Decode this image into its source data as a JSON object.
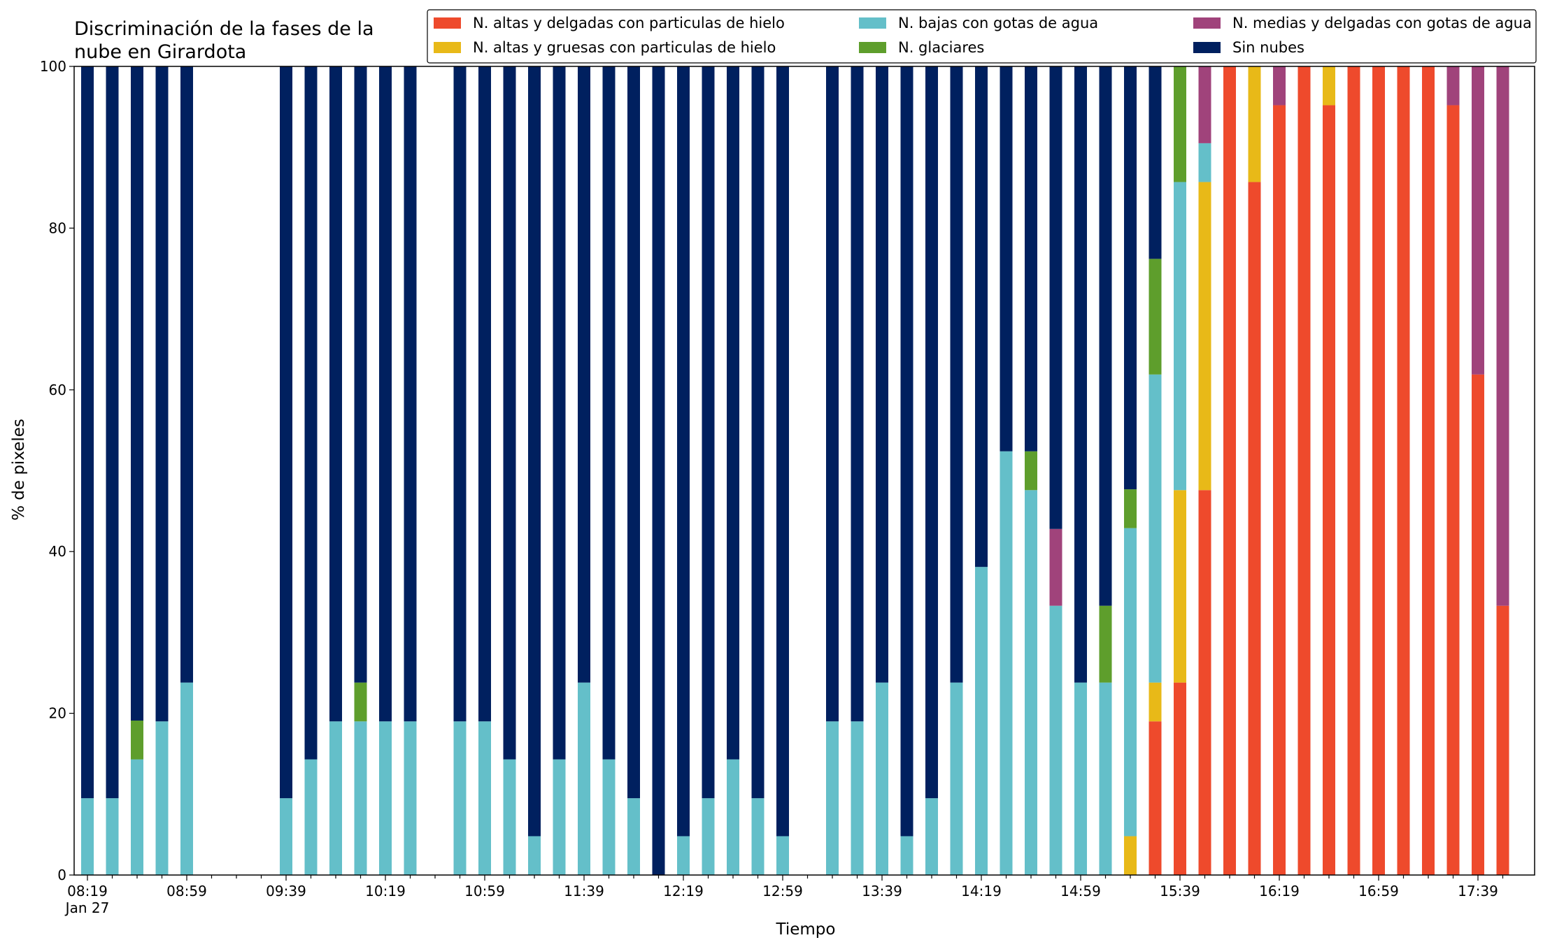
{
  "chart_data": {
    "type": "bar",
    "stacked": true,
    "title_lines": [
      "Discriminación de la fases de la",
      "nube en Girardota"
    ],
    "xlabel": "Tiempo",
    "ylabel": "% de pixeles",
    "ylim": [
      0,
      100
    ],
    "yticks": [
      0,
      20,
      40,
      60,
      80,
      100
    ],
    "x_start": "08:19",
    "interval_minutes": 10,
    "x_ticks": [
      {
        "slot": 0,
        "label": "08:19",
        "sublabel": "Jan 27"
      },
      {
        "slot": 4,
        "label": "08:59"
      },
      {
        "slot": 8,
        "label": "09:39"
      },
      {
        "slot": 12,
        "label": "10:19"
      },
      {
        "slot": 16,
        "label": "10:59"
      },
      {
        "slot": 20,
        "label": "11:39"
      },
      {
        "slot": 24,
        "label": "12:19"
      },
      {
        "slot": 28,
        "label": "12:59"
      },
      {
        "slot": 32,
        "label": "13:39"
      },
      {
        "slot": 36,
        "label": "14:19"
      },
      {
        "slot": 40,
        "label": "14:59"
      },
      {
        "slot": 44,
        "label": "15:39"
      },
      {
        "slot": 48,
        "label": "16:19"
      },
      {
        "slot": 52,
        "label": "16:59"
      },
      {
        "slot": 56,
        "label": "17:39"
      }
    ],
    "x_slots": 58,
    "legend_position": "top-right",
    "legend_columns": [
      [
        "altas_delgadas",
        "altas_gruesas"
      ],
      [
        "bajas",
        "glaciares"
      ],
      [
        "medias",
        "sin_nubes"
      ]
    ],
    "series": [
      {
        "key": "altas_delgadas",
        "name": "N. altas y delgadas con particulas de hielo",
        "color": "#ee4a2c"
      },
      {
        "key": "altas_gruesas",
        "name": "N. altas y gruesas con particulas de hielo",
        "color": "#e8b918"
      },
      {
        "key": "bajas",
        "name": "N. bajas con gotas de agua",
        "color": "#64bfc9"
      },
      {
        "key": "glaciares",
        "name": "N. glaciares",
        "color": "#5e9e2c"
      },
      {
        "key": "medias",
        "name": "N. medias y delgadas con gotas de agua",
        "color": "#a0437b"
      },
      {
        "key": "sin_nubes",
        "name": "Sin nubes",
        "color": "#00205f"
      }
    ],
    "bars": [
      {
        "time": "08:19",
        "values": [
          0,
          0,
          9.5,
          0,
          0,
          90.5
        ]
      },
      {
        "time": "08:29",
        "values": [
          0,
          0,
          9.5,
          0,
          0,
          90.5
        ]
      },
      {
        "time": "08:39",
        "values": [
          0,
          0,
          14.3,
          4.8,
          0,
          80.9
        ]
      },
      {
        "time": "08:49",
        "values": [
          0,
          0,
          19.0,
          0,
          0,
          81.0
        ]
      },
      {
        "time": "08:59",
        "values": [
          0,
          0,
          23.8,
          0,
          0,
          76.2
        ]
      },
      {
        "time": "09:39",
        "values": [
          0,
          0,
          9.5,
          0,
          0,
          90.5
        ]
      },
      {
        "time": "09:49",
        "values": [
          0,
          0,
          14.3,
          0,
          0,
          85.7
        ]
      },
      {
        "time": "09:59",
        "values": [
          0,
          0,
          19.0,
          0,
          0,
          81.0
        ]
      },
      {
        "time": "10:09",
        "values": [
          0,
          0,
          19.0,
          4.8,
          0,
          76.2
        ]
      },
      {
        "time": "10:19",
        "values": [
          0,
          0,
          19.0,
          0,
          0,
          81.0
        ]
      },
      {
        "time": "10:29",
        "values": [
          0,
          0,
          19.0,
          0,
          0,
          81.0
        ]
      },
      {
        "time": "10:49",
        "values": [
          0,
          0,
          19.0,
          0,
          0,
          81.0
        ]
      },
      {
        "time": "10:59",
        "values": [
          0,
          0,
          19.0,
          0,
          0,
          81.0
        ]
      },
      {
        "time": "11:09",
        "values": [
          0,
          0,
          14.3,
          0,
          0,
          85.7
        ]
      },
      {
        "time": "11:19",
        "values": [
          0,
          0,
          4.8,
          0,
          0,
          95.2
        ]
      },
      {
        "time": "11:29",
        "values": [
          0,
          0,
          14.3,
          0,
          0,
          85.7
        ]
      },
      {
        "time": "11:39",
        "values": [
          0,
          0,
          23.8,
          0,
          0,
          76.2
        ]
      },
      {
        "time": "11:49",
        "values": [
          0,
          0,
          14.3,
          0,
          0,
          85.7
        ]
      },
      {
        "time": "11:59",
        "values": [
          0,
          0,
          9.5,
          0,
          0,
          90.5
        ]
      },
      {
        "time": "12:09",
        "values": [
          0,
          0,
          0,
          0,
          0,
          100
        ]
      },
      {
        "time": "12:19",
        "values": [
          0,
          0,
          4.8,
          0,
          0,
          95.2
        ]
      },
      {
        "time": "12:29",
        "values": [
          0,
          0,
          9.5,
          0,
          0,
          90.5
        ]
      },
      {
        "time": "12:39",
        "values": [
          0,
          0,
          14.3,
          0,
          0,
          85.7
        ]
      },
      {
        "time": "12:49",
        "values": [
          0,
          0,
          9.5,
          0,
          0,
          90.5
        ]
      },
      {
        "time": "12:59",
        "values": [
          0,
          0,
          4.8,
          0,
          0,
          95.2
        ]
      },
      {
        "time": "13:19",
        "values": [
          0,
          0,
          19.0,
          0,
          0,
          81.0
        ]
      },
      {
        "time": "13:29",
        "values": [
          0,
          0,
          19.0,
          0,
          0,
          81.0
        ]
      },
      {
        "time": "13:39",
        "values": [
          0,
          0,
          23.8,
          0,
          0,
          76.2
        ]
      },
      {
        "time": "13:49",
        "values": [
          0,
          0,
          4.8,
          0,
          0,
          95.2
        ]
      },
      {
        "time": "13:59",
        "values": [
          0,
          0,
          9.5,
          0,
          0,
          90.5
        ]
      },
      {
        "time": "14:09",
        "values": [
          0,
          0,
          23.8,
          0,
          0,
          76.2
        ]
      },
      {
        "time": "14:19",
        "values": [
          0,
          0,
          38.1,
          0,
          0,
          61.9
        ]
      },
      {
        "time": "14:29",
        "values": [
          0,
          0,
          52.4,
          0,
          0,
          47.6
        ]
      },
      {
        "time": "14:39",
        "values": [
          0,
          0,
          47.6,
          4.8,
          0,
          47.6
        ]
      },
      {
        "time": "14:49",
        "values": [
          0,
          0,
          33.3,
          0,
          9.5,
          57.2
        ]
      },
      {
        "time": "14:59",
        "values": [
          0,
          0,
          23.8,
          0,
          0,
          76.2
        ]
      },
      {
        "time": "15:09",
        "values": [
          0,
          0,
          23.8,
          9.5,
          0,
          66.7
        ]
      },
      {
        "time": "15:19",
        "values": [
          0,
          4.8,
          38.1,
          4.8,
          0,
          52.3
        ]
      },
      {
        "time": "15:29",
        "values": [
          19.0,
          4.8,
          38.1,
          14.3,
          0,
          23.8
        ]
      },
      {
        "time": "15:39",
        "values": [
          23.8,
          23.8,
          38.1,
          14.3,
          0,
          0
        ]
      },
      {
        "time": "15:49",
        "values": [
          47.6,
          38.1,
          4.8,
          0,
          9.5,
          0
        ]
      },
      {
        "time": "15:59",
        "values": [
          100,
          0,
          0,
          0,
          0,
          0
        ]
      },
      {
        "time": "16:09",
        "values": [
          85.7,
          14.3,
          0,
          0,
          0,
          0
        ]
      },
      {
        "time": "16:19",
        "values": [
          95.2,
          0,
          0,
          0,
          4.8,
          0
        ]
      },
      {
        "time": "16:29",
        "values": [
          100,
          0,
          0,
          0,
          0,
          0
        ]
      },
      {
        "time": "16:39",
        "values": [
          95.2,
          4.8,
          0,
          0,
          0,
          0
        ]
      },
      {
        "time": "16:49",
        "values": [
          100,
          0,
          0,
          0,
          0,
          0
        ]
      },
      {
        "time": "16:59",
        "values": [
          100,
          0,
          0,
          0,
          0,
          0
        ]
      },
      {
        "time": "17:09",
        "values": [
          100,
          0,
          0,
          0,
          0,
          0
        ]
      },
      {
        "time": "17:19",
        "values": [
          100,
          0,
          0,
          0,
          0,
          0
        ]
      },
      {
        "time": "17:29",
        "values": [
          95.2,
          0,
          0,
          0,
          4.8,
          0
        ]
      },
      {
        "time": "17:39",
        "values": [
          61.9,
          0,
          0,
          0,
          38.1,
          0
        ]
      },
      {
        "time": "17:49",
        "values": [
          33.3,
          0,
          0,
          0,
          66.7,
          0
        ]
      }
    ]
  }
}
